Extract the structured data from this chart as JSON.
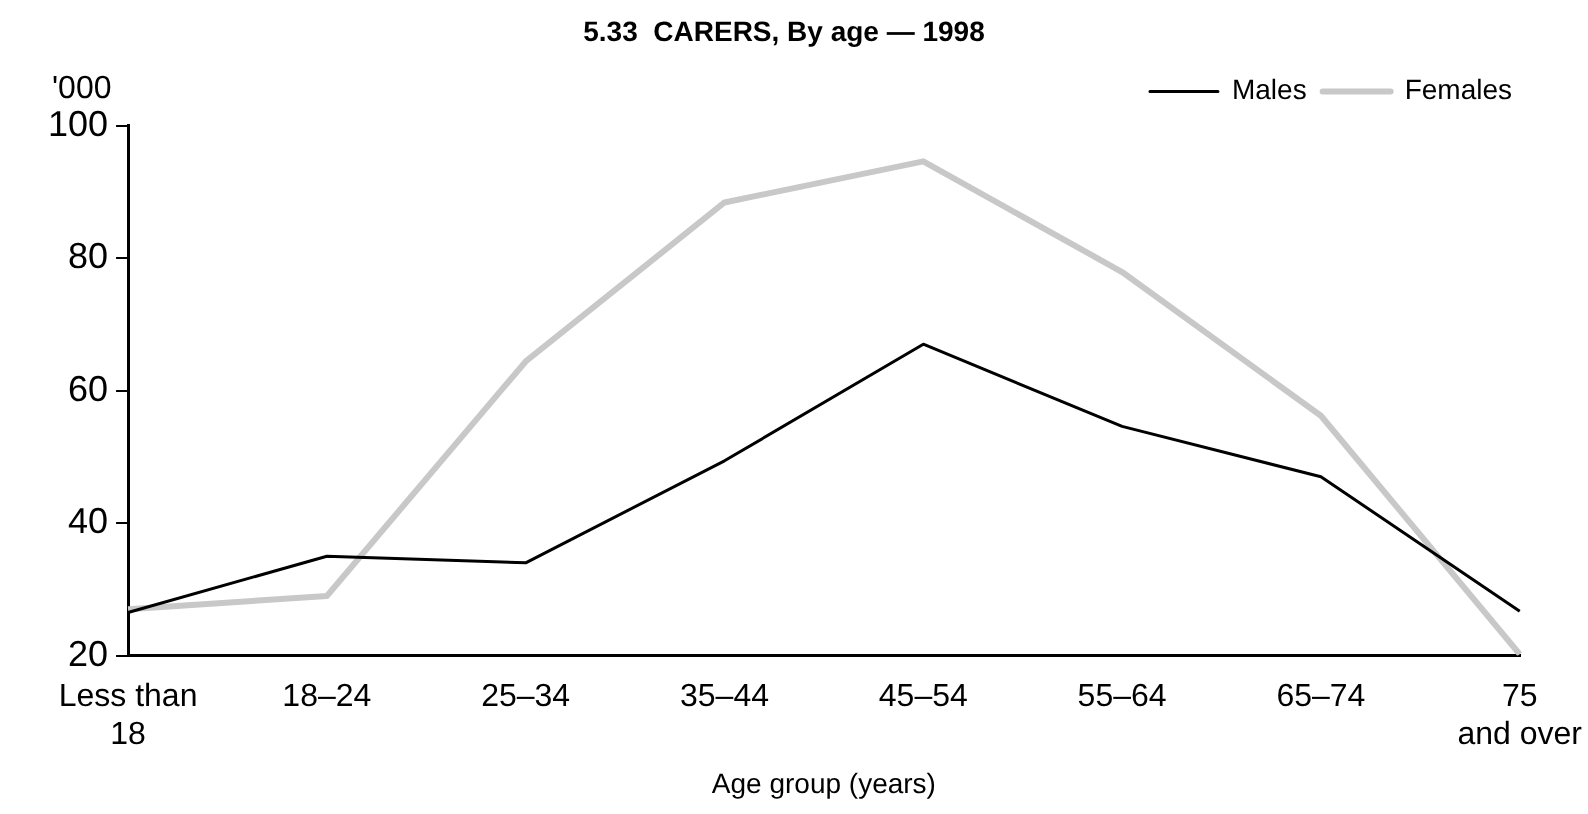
{
  "chart_data": {
    "type": "line",
    "title": "5.33  CARERS, By age — 1998",
    "xlabel": "Age group (years)",
    "ylabel": "'000",
    "categories": [
      "Less than\n18",
      "18–24",
      "25–34",
      "35–44",
      "45–54",
      "55–64",
      "65–74",
      "75\nand over"
    ],
    "series": [
      {
        "name": "Males",
        "color": "#000000",
        "values": [
          26.5,
          35,
          34,
          49.4,
          67,
          54.6,
          47,
          26.7
        ]
      },
      {
        "name": "Females",
        "color": "#c8c8c8",
        "values": [
          27,
          29,
          64.4,
          88.4,
          94.6,
          77.9,
          56.2,
          20.2
        ]
      }
    ],
    "ylim": [
      20,
      100
    ],
    "yticks": [
      20,
      40,
      60,
      80,
      100
    ],
    "grid": false,
    "legend": "top right",
    "marker": "none"
  }
}
